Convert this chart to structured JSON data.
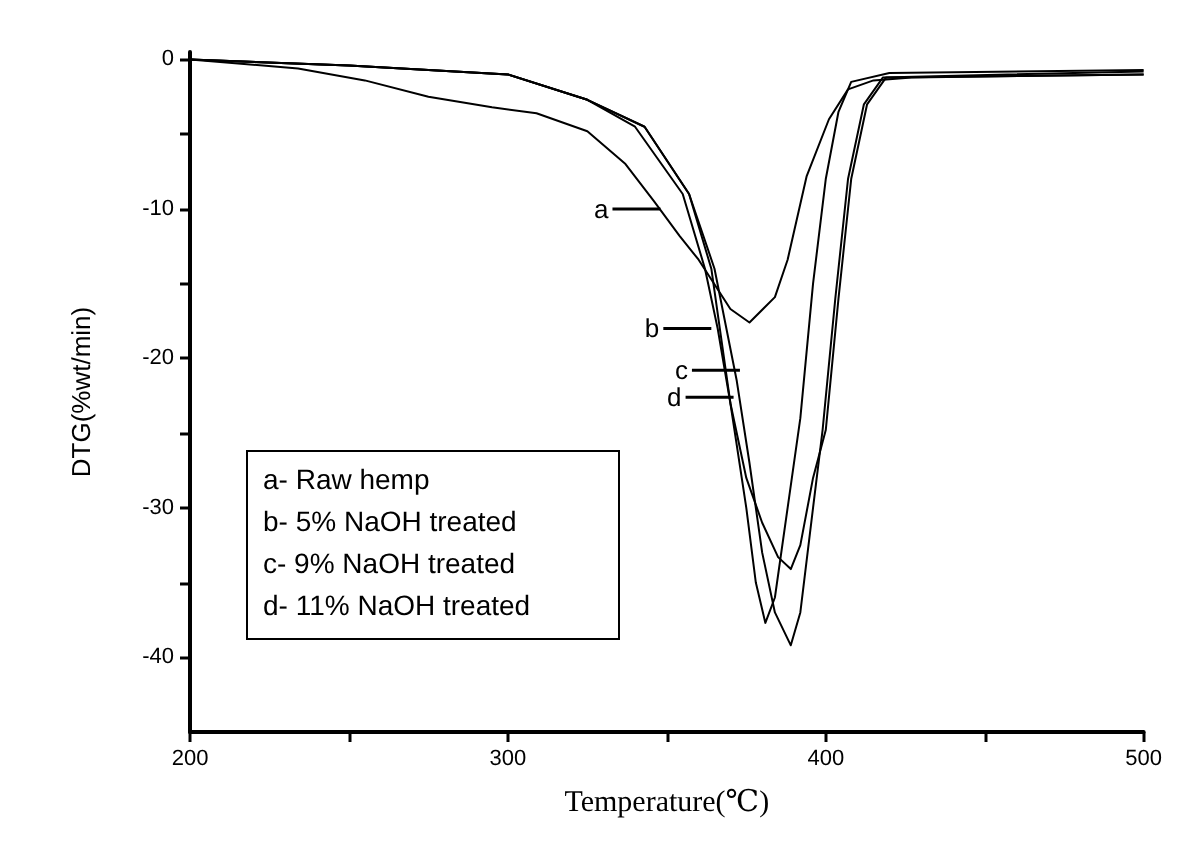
{
  "chart_data": {
    "type": "line",
    "xlabel": "Temperature(℃)",
    "ylabel": "DTG(%wt/min)",
    "xlim": [
      200,
      500
    ],
    "ylim": [
      -45,
      0.5
    ],
    "xticks": [
      200,
      {
        "value": 250,
        "label": null
      },
      300,
      {
        "value": 350,
        "label": null
      },
      400,
      {
        "value": 450,
        "label": null
      },
      500
    ],
    "yticks": [
      0,
      {
        "value": -5,
        "label": null
      },
      -10,
      {
        "value": -15,
        "label": null
      },
      -20,
      {
        "value": -25,
        "label": null
      },
      -30,
      {
        "value": -35,
        "label": null
      },
      -40
    ],
    "grid": false,
    "marker": "none",
    "line_style": "solid",
    "series": [
      {
        "color": "#000000",
        "x": [
          200,
          234,
          255,
          275,
          295,
          309,
          325,
          337,
          346,
          354,
          360,
          370,
          376,
          384,
          388,
          394,
          401,
          407,
          415,
          427,
          500
        ],
        "values": [
          0,
          -0.6,
          -1.4,
          -2.5,
          -3.2,
          -3.6,
          -4.8,
          -7,
          -9.5,
          -11.8,
          -13.4,
          -16.7,
          -17.6,
          -15.9,
          -13.4,
          -7.8,
          -4,
          -2,
          -1.4,
          -1.2,
          -1.0
        ]
      },
      {
        "color": "#000000",
        "x": [
          200,
          250,
          300,
          325,
          340,
          355,
          362,
          366,
          370,
          375,
          378,
          381,
          384,
          388,
          392,
          396,
          400,
          404,
          408,
          420,
          500
        ],
        "values": [
          0,
          -0.4,
          -1,
          -2.7,
          -4.5,
          -9,
          -14,
          -18,
          -23,
          -30,
          -35,
          -37.7,
          -36,
          -30,
          -24,
          -15,
          -8,
          -3.5,
          -1.5,
          -0.9,
          -0.7
        ]
      },
      {
        "color": "#000000",
        "x": [
          200,
          250,
          300,
          325,
          343,
          357,
          365,
          372,
          376,
          380,
          384,
          389,
          392,
          396,
          399,
          403,
          407,
          412,
          418,
          500
        ],
        "values": [
          0,
          -0.4,
          -1,
          -2.7,
          -4.5,
          -9,
          -14,
          -21.5,
          -27,
          -33,
          -37,
          -39.2,
          -37,
          -30,
          -24.8,
          -16,
          -8,
          -3,
          -1.2,
          -0.8
        ]
      },
      {
        "color": "#000000",
        "x": [
          200,
          250,
          300,
          325,
          343,
          357,
          364,
          370,
          375,
          380,
          385,
          389,
          392,
          396,
          400,
          404,
          408,
          413,
          419,
          500
        ],
        "values": [
          0,
          -0.4,
          -1,
          -2.7,
          -4.5,
          -9,
          -14,
          -23,
          -28,
          -31,
          -33.3,
          -34.1,
          -32.5,
          -28,
          -24.8,
          -16,
          -8,
          -3,
          -1.2,
          -1
        ]
      }
    ],
    "annotations": [
      "a- Raw hemp",
      "b- 5% NaOH treated",
      "c- 9% NaOH treated",
      "d- 11% NaOH treated",
      {
        "text": "a",
        "x": 348,
        "y": -10
      },
      {
        "text": "b",
        "x": 364,
        "y": -18
      },
      {
        "text": "c",
        "x": 373,
        "y": -20.8
      },
      {
        "text": "d",
        "x": 371,
        "y": -22.6
      }
    ]
  }
}
